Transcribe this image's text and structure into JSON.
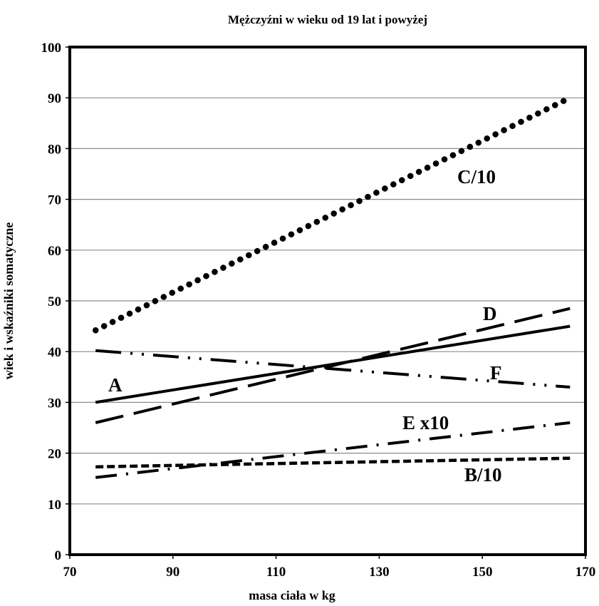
{
  "chart_data": {
    "type": "line",
    "title": "Mężczyźni w wieku od 19  lat i powyżej",
    "xlabel": "masa ciała w kg",
    "ylabel": "wiek i wskaźniki  somatyczne",
    "xlim": [
      70,
      170
    ],
    "ylim": [
      0,
      100
    ],
    "x_ticks": [
      "70",
      "90",
      "110",
      "130",
      "150",
      "170"
    ],
    "y_ticks": [
      "0",
      "10",
      "20",
      "30",
      "40",
      "50",
      "60",
      "70",
      "80",
      "90",
      "100"
    ],
    "grid": "horizontal",
    "series": [
      {
        "name": "A",
        "style": "solid",
        "x": [
          75,
          167
        ],
        "y": [
          30,
          45
        ]
      },
      {
        "name": "B/10",
        "style": "short-dash",
        "x": [
          75,
          167
        ],
        "y": [
          17.3,
          19
        ]
      },
      {
        "name": "C/10",
        "style": "dotted",
        "x": [
          75,
          167
        ],
        "y": [
          44.2,
          90
        ]
      },
      {
        "name": "D",
        "style": "long-dash",
        "x": [
          75,
          167
        ],
        "y": [
          26,
          48.5
        ]
      },
      {
        "name": "E x10",
        "style": "dash-dot",
        "x": [
          75,
          167
        ],
        "y": [
          15.2,
          26
        ]
      },
      {
        "name": "F",
        "style": "dash-dot-dot",
        "x": [
          75,
          167
        ],
        "y": [
          40.2,
          33
        ]
      }
    ]
  }
}
